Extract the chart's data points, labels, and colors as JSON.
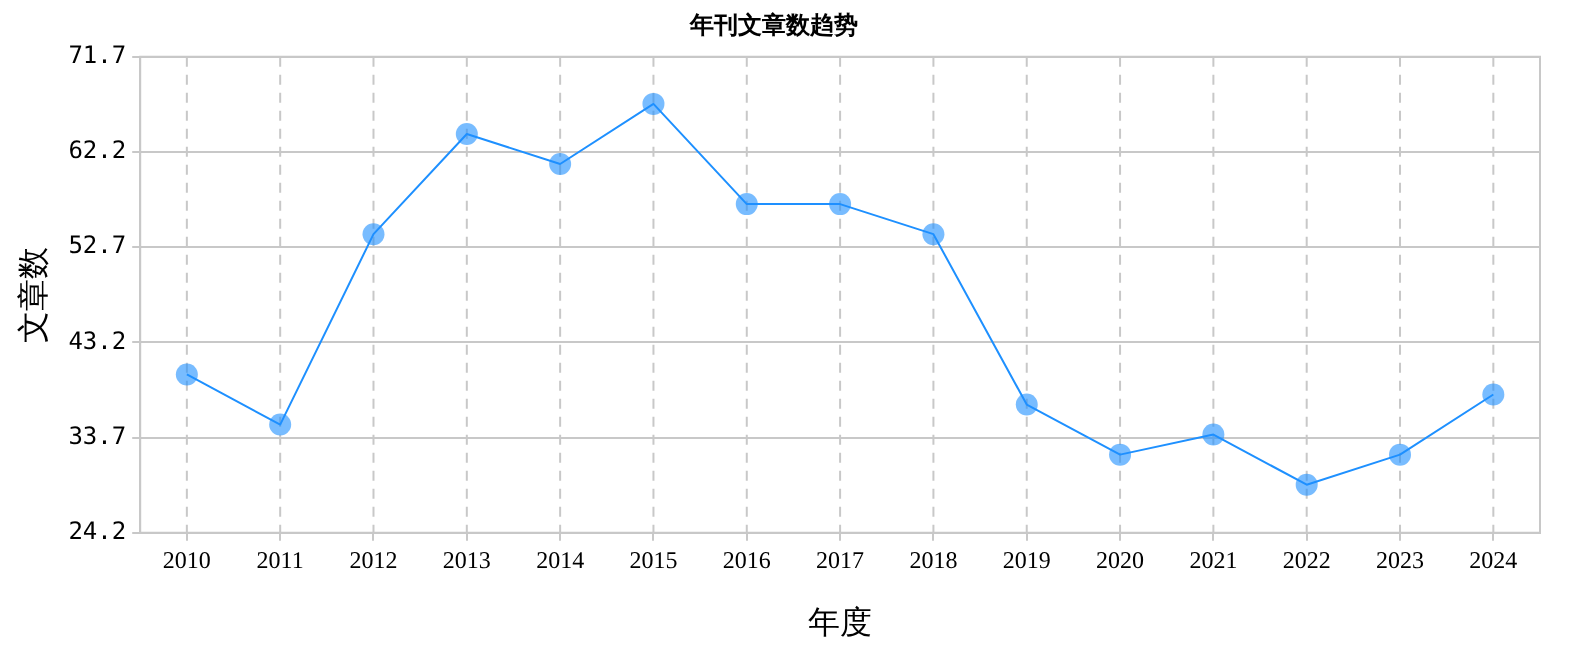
{
  "chart_data": {
    "type": "line",
    "title": "年刊文章数趋势",
    "xlabel": "年度",
    "ylabel": "文章数",
    "categories": [
      "2010",
      "2011",
      "2012",
      "2013",
      "2014",
      "2015",
      "2016",
      "2017",
      "2018",
      "2019",
      "2020",
      "2021",
      "2022",
      "2023",
      "2024"
    ],
    "series": [
      {
        "color": "#1e90ff",
        "values": [
          40,
          35,
          54,
          64,
          61,
          67,
          57,
          57,
          54,
          37,
          32,
          34,
          29,
          32,
          38
        ]
      }
    ],
    "ylim": [
      24.2,
      71.7
    ],
    "yticks": [
      24.2,
      33.7,
      43.2,
      52.7,
      62.2,
      71.7
    ],
    "grid": true,
    "marker": "circle",
    "line_style": "solid",
    "legend": false
  }
}
